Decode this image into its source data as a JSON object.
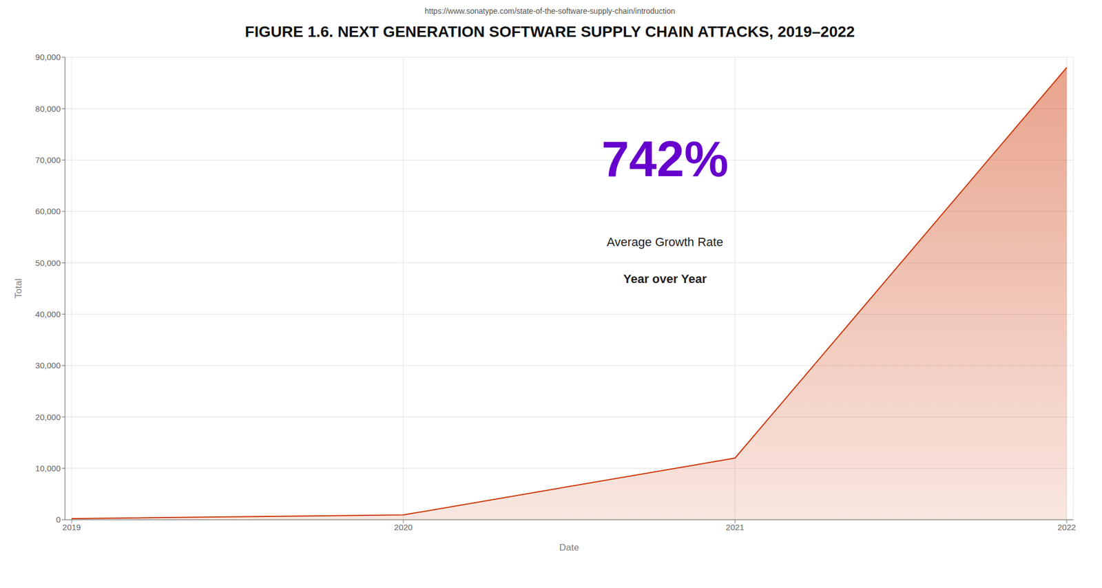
{
  "chart_data": {
    "type": "area",
    "title": "FIGURE 1.6. NEXT GENERATION SOFTWARE SUPPLY CHAIN ATTACKS, 2019–2022",
    "subtitle": "https://www.sonatype.com/state-of-the-software-supply-chain/introduction",
    "x_label": "Date",
    "y_label": "Total",
    "x": [
      2019,
      2020,
      2021,
      2022
    ],
    "values": [
      216,
      929,
      12000,
      88000
    ],
    "color": "#CC3300",
    "xlim": [
      2018.98,
      2022.02
    ],
    "xticks": [
      2019,
      2020,
      2021,
      2022
    ],
    "ylim": [
      0,
      90000
    ],
    "yticks": [
      0,
      {
        "value": 10000,
        "label": "10,000"
      },
      {
        "value": 20000,
        "label": "20,000"
      },
      {
        "value": 30000,
        "label": "30,000"
      },
      {
        "value": 40000,
        "label": "40,000"
      },
      {
        "value": 50000,
        "label": "50,000"
      },
      {
        "value": 60000,
        "label": "60,000"
      },
      {
        "value": 70000,
        "label": "70,000"
      },
      {
        "value": 80000,
        "label": "80,000"
      },
      {
        "value": 90000,
        "label": "90,000"
      }
    ],
    "grid": true,
    "annotations": [
      {
        "text": "742%",
        "color": "#6600CC"
      },
      {
        "text": "Average Growth Rate"
      },
      {
        "text": "Year over Year"
      }
    ]
  }
}
